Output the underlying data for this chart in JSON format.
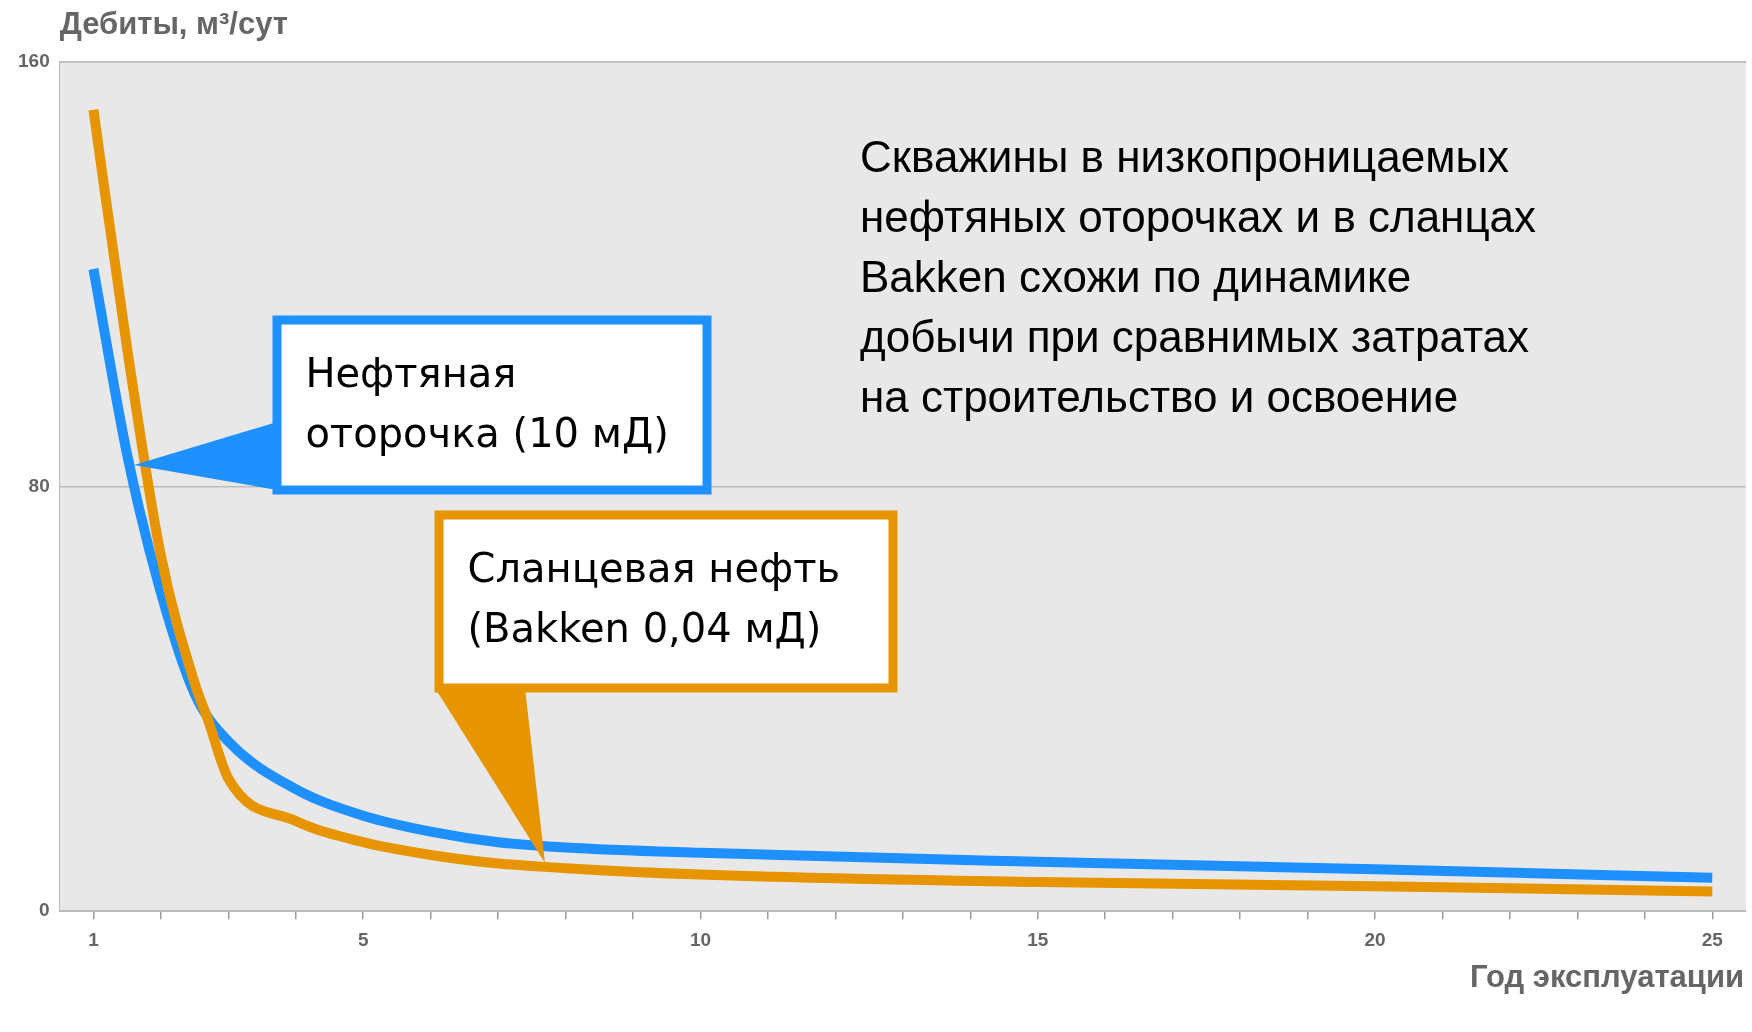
{
  "chart_data": {
    "type": "line",
    "xlabel": "Год эксплуатации",
    "ylabel": "Дебиты, м³/сут",
    "series": [
      {
        "color": "#e69500",
        "x": [
          1,
          1.5,
          2,
          2.5,
          2.7,
          3,
          4,
          5,
          6,
          7,
          8,
          10,
          15,
          20,
          25
        ],
        "values": [
          151,
          106,
          67,
          43,
          36,
          25,
          17,
          13,
          10.6,
          9,
          8.1,
          6.9,
          5.5,
          4.7,
          3.7
        ]
      },
      {
        "color": "#1e90ff",
        "x": [
          1,
          1.5,
          2,
          2.5,
          3,
          4,
          5,
          6,
          7,
          8,
          10,
          15,
          20,
          25
        ],
        "values": [
          121,
          86,
          60,
          41,
          32,
          23,
          18,
          15,
          13,
          12,
          11,
          9.3,
          7.9,
          6.3
        ]
      }
    ],
    "xlim": [
      0.5,
      25.5
    ],
    "xticks": [
      1,
      {
        "value": 2,
        "label": null
      },
      {
        "value": 3,
        "label": null
      },
      {
        "value": 4,
        "label": null
      },
      5,
      {
        "value": 6,
        "label": null
      },
      {
        "value": 7,
        "label": null
      },
      {
        "value": 8,
        "label": null
      },
      {
        "value": 9,
        "label": null
      },
      10,
      {
        "value": 11,
        "label": null
      },
      {
        "value": 12,
        "label": null
      },
      {
        "value": 13,
        "label": null
      },
      {
        "value": 14,
        "label": null
      },
      15,
      {
        "value": 16,
        "label": null
      },
      {
        "value": 17,
        "label": null
      },
      {
        "value": 18,
        "label": null
      },
      {
        "value": 19,
        "label": null
      },
      20,
      {
        "value": 21,
        "label": null
      },
      {
        "value": 22,
        "label": null
      },
      {
        "value": 23,
        "label": null
      },
      {
        "value": 24,
        "label": null
      },
      25
    ],
    "ylim": [
      0,
      160
    ],
    "yticks": [
      0,
      80,
      160
    ],
    "grid": "y",
    "legend": false,
    "line_style": "solid",
    "marker": "none",
    "annotations": [
      {
        "text": "Нефтяная\nоторочка (10 мД)",
        "x": 1.6,
        "y": 84
      },
      "Сланцевая нефть\n(Bakken 0,04 мД)",
      "Скважины в низкопроницаемых\nнефтяных оторочках и в сланцах\nBakken схожи по динамике\nдобычи при сравнимых затратах\nна строительство и освоение"
    ]
  }
}
